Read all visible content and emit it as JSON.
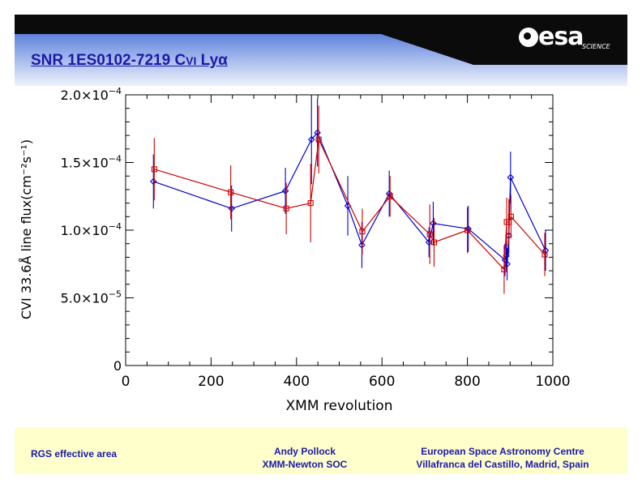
{
  "header": {
    "title_prefix": "SNR 1ES0102-7219 C",
    "title_smallcaps": "VI",
    "title_suffix": " Lyα",
    "logo_text": "esa",
    "logo_sub": "SCIENCE"
  },
  "colors": {
    "accent": "#1a1aa8",
    "header_dark": "#0b0b0b",
    "header_light": "#aabfee",
    "footer_bg": "#ffffcc",
    "series_blue": "#0000cc",
    "series_red": "#cc0000"
  },
  "chart_data": {
    "type": "line",
    "xlabel": "XMM revolution",
    "ylabel": "CVI 33.6Å line flux(cm⁻²s⁻¹)",
    "xlim": [
      0,
      1000
    ],
    "ylim": [
      0,
      0.0002
    ],
    "x_ticks": [
      0,
      200,
      400,
      600,
      800,
      1000
    ],
    "x_tick_labels": [
      "0",
      "200",
      "400",
      "600",
      "800",
      "1000"
    ],
    "y_ticks": [
      0,
      5e-05,
      0.0001,
      0.00015,
      0.0002
    ],
    "y_tick_labels": [
      {
        "mant": "0",
        "exp": ""
      },
      {
        "mant": "5.0×10",
        "exp": "−5"
      },
      {
        "mant": "1.0×10",
        "exp": "−4"
      },
      {
        "mant": "1.5×10",
        "exp": "−4"
      },
      {
        "mant": "2.0×10",
        "exp": "−4"
      }
    ],
    "series": [
      {
        "name": "blue",
        "color": "#0000cc",
        "marker": "diamond",
        "x": [
          65,
          248,
          374,
          435,
          449,
          520,
          553,
          617,
          710,
          720,
          802,
          888,
          891,
          893,
          897,
          901,
          983
        ],
        "y": [
          0.000136,
          0.000116,
          0.000129,
          0.000167,
          0.000172,
          0.000118,
          8.9e-05,
          0.000127,
          9.1e-05,
          0.000105,
          0.000101,
          7.8e-05,
          8.1e-05,
          7.5e-05,
          9.6e-05,
          0.000139,
          8.5e-05
        ],
        "err": [
          2e-05,
          1.7e-05,
          1.7e-05,
          3.3e-05,
          2.5e-05,
          2.2e-05,
          1.7e-05,
          1.7e-05,
          1.1e-05,
          1.6e-05,
          1.7e-05,
          1.2e-05,
          1.1e-05,
          1.2e-05,
          1.4e-05,
          1.9e-05,
          1.5e-05
        ]
      },
      {
        "name": "red",
        "color": "#cc0000",
        "marker": "square",
        "x": [
          67,
          246,
          376,
          433,
          452,
          554,
          619,
          712,
          722,
          800,
          886,
          892,
          897,
          902,
          981
        ],
        "y": [
          0.000145,
          0.000128,
          0.000116,
          0.00012,
          0.000167,
          9.9e-05,
          0.000125,
          9.7e-05,
          9.1e-05,
          0.0001,
          7.1e-05,
          0.000106,
          0.000106,
          0.00011,
          8.2e-05
        ],
        "err": [
          2.3e-05,
          2e-05,
          1.9e-05,
          2.9e-05,
          2.5e-05,
          1.7e-05,
          1.5e-05,
          2.2e-05,
          1.8e-05,
          1.7e-05,
          1.8e-05,
          1.8e-05,
          1.7e-05,
          1.6e-05,
          1.6e-05
        ]
      }
    ]
  },
  "footer": {
    "left": "RGS effective area",
    "mid_line1": "Andy Pollock",
    "mid_line2": "XMM-Newton SOC",
    "right_line1": "European Space Astronomy Centre",
    "right_line2": "Villafranca del Castillo, Madrid, Spain"
  }
}
